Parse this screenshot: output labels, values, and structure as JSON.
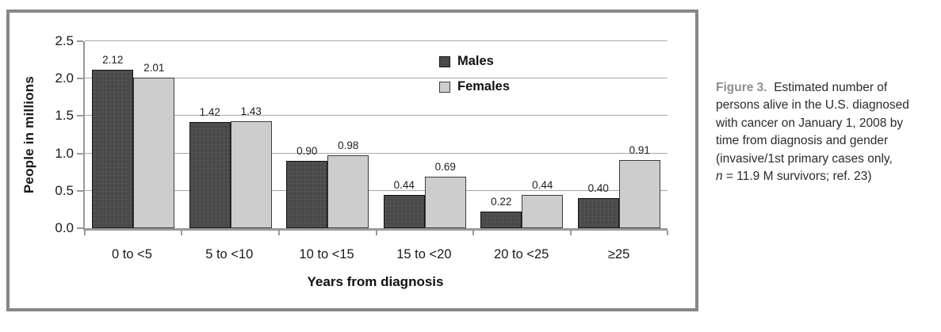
{
  "chart_data": {
    "type": "bar",
    "title": "",
    "categories": [
      "0 to <5",
      "5 to <10",
      "10 to <15",
      "15 to <20",
      "20 to <25",
      "≥25"
    ],
    "series": [
      {
        "name": "Males",
        "values": [
          2.12,
          1.42,
          0.9,
          0.44,
          0.22,
          0.4
        ],
        "labels": [
          "2.12",
          "1.42",
          "0.90",
          "0.44",
          "0.22",
          "0.40"
        ],
        "color": "#4a4a4a",
        "border": "#161616"
      },
      {
        "name": "Females",
        "values": [
          2.01,
          1.43,
          0.98,
          0.69,
          0.44,
          0.91
        ],
        "labels": [
          "2.01",
          "1.43",
          "0.98",
          "0.69",
          "0.44",
          "0.91"
        ],
        "color": "#cdcdcd",
        "border": "#3c3c3c"
      }
    ],
    "xlabel": "Years from diagnosis",
    "ylabel": "People in millions",
    "ylim": [
      0,
      2.5
    ],
    "yticks": [
      "0.0",
      "0.5",
      "1.0",
      "1.5",
      "2.0",
      "2.5"
    ],
    "grid": true,
    "legend_position": "inside upper right of plot, no box"
  },
  "figure": {
    "caption": {
      "label": "Figure 3.",
      "line1_rest": "  Estimated number of",
      "line2": "persons alive in the U.S. diagnosed",
      "line3": "with cancer on January 1, 2008 by",
      "line4": "time from diagnosis and gender",
      "line5": "(invasive/1st primary cases only,",
      "line6_n": "n",
      "line6_rest": " = 11.9 M survivors; ref. 23)"
    }
  },
  "colors": {
    "males": "#4a4a4a",
    "females": "#cdcdcd",
    "frame_border": "#85878a",
    "gridline": "#a8a8a8",
    "axis": "#999999",
    "caption_label": "#8f8f8f"
  }
}
